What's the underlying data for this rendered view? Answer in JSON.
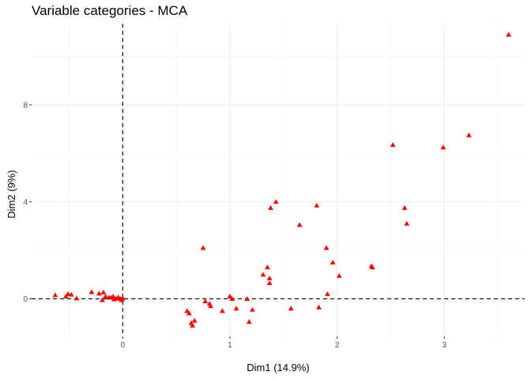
{
  "chart_data": {
    "type": "scatter",
    "title": "Variable categories - MCA",
    "xlabel": "Dim1 (14.9%)",
    "ylabel": "Dim2 (9%)",
    "xlim": [
      -0.85,
      3.75
    ],
    "ylim": [
      -1.55,
      11.35
    ],
    "x_ticks": [
      0,
      1,
      2,
      3
    ],
    "y_ticks": [
      0,
      4,
      8
    ],
    "x_tick_labels": [
      "0",
      "1",
      "2",
      "3"
    ],
    "y_tick_labels": [
      "0",
      "4",
      "8"
    ],
    "reference_lines": {
      "x": 0,
      "y": 0,
      "style": "dashed"
    },
    "grid": true,
    "marker": "triangle",
    "point_color": "#ff0000",
    "points": [
      {
        "x": -0.63,
        "y": 0.15
      },
      {
        "x": -0.53,
        "y": 0.1
      },
      {
        "x": -0.51,
        "y": 0.2
      },
      {
        "x": -0.48,
        "y": 0.18
      },
      {
        "x": -0.43,
        "y": 0.02
      },
      {
        "x": -0.29,
        "y": 0.28
      },
      {
        "x": -0.22,
        "y": 0.22
      },
      {
        "x": -0.19,
        "y": -0.05
      },
      {
        "x": -0.18,
        "y": 0.27
      },
      {
        "x": -0.16,
        "y": 0.1
      },
      {
        "x": -0.13,
        "y": 0.05
      },
      {
        "x": -0.11,
        "y": 0.05
      },
      {
        "x": -0.09,
        "y": 0.1
      },
      {
        "x": -0.08,
        "y": -0.02
      },
      {
        "x": -0.06,
        "y": 0.02
      },
      {
        "x": -0.04,
        "y": 0.06
      },
      {
        "x": -0.02,
        "y": 0.0
      },
      {
        "x": -0.01,
        "y": -0.05
      },
      {
        "x": 0.0,
        "y": 0.02
      },
      {
        "x": 0.6,
        "y": -0.5
      },
      {
        "x": 0.62,
        "y": -0.6
      },
      {
        "x": 0.64,
        "y": -1.0
      },
      {
        "x": 0.65,
        "y": -1.1
      },
      {
        "x": 0.67,
        "y": -0.9
      },
      {
        "x": 0.75,
        "y": 2.1
      },
      {
        "x": 0.77,
        "y": -0.1
      },
      {
        "x": 0.81,
        "y": -0.2
      },
      {
        "x": 0.82,
        "y": -0.3
      },
      {
        "x": 0.93,
        "y": -0.5
      },
      {
        "x": 1.0,
        "y": 0.1
      },
      {
        "x": 1.02,
        "y": 0.0
      },
      {
        "x": 1.06,
        "y": -0.4
      },
      {
        "x": 1.16,
        "y": 0.0
      },
      {
        "x": 1.18,
        "y": -0.95
      },
      {
        "x": 1.21,
        "y": -0.45
      },
      {
        "x": 1.31,
        "y": 1.0
      },
      {
        "x": 1.35,
        "y": 1.3
      },
      {
        "x": 1.37,
        "y": 0.85
      },
      {
        "x": 1.37,
        "y": 0.65
      },
      {
        "x": 1.38,
        "y": 3.75
      },
      {
        "x": 1.43,
        "y": 4.0
      },
      {
        "x": 1.57,
        "y": -0.4
      },
      {
        "x": 1.65,
        "y": 3.05
      },
      {
        "x": 1.81,
        "y": 3.85
      },
      {
        "x": 1.83,
        "y": -0.35
      },
      {
        "x": 1.9,
        "y": 2.1
      },
      {
        "x": 1.91,
        "y": 0.2
      },
      {
        "x": 1.96,
        "y": 1.5
      },
      {
        "x": 2.02,
        "y": 0.95
      },
      {
        "x": 2.32,
        "y": 1.35
      },
      {
        "x": 2.33,
        "y": 1.3
      },
      {
        "x": 2.52,
        "y": 6.35
      },
      {
        "x": 2.63,
        "y": 3.75
      },
      {
        "x": 2.65,
        "y": 3.1
      },
      {
        "x": 2.99,
        "y": 6.25
      },
      {
        "x": 3.23,
        "y": 6.75
      },
      {
        "x": 3.6,
        "y": 10.9
      }
    ]
  }
}
